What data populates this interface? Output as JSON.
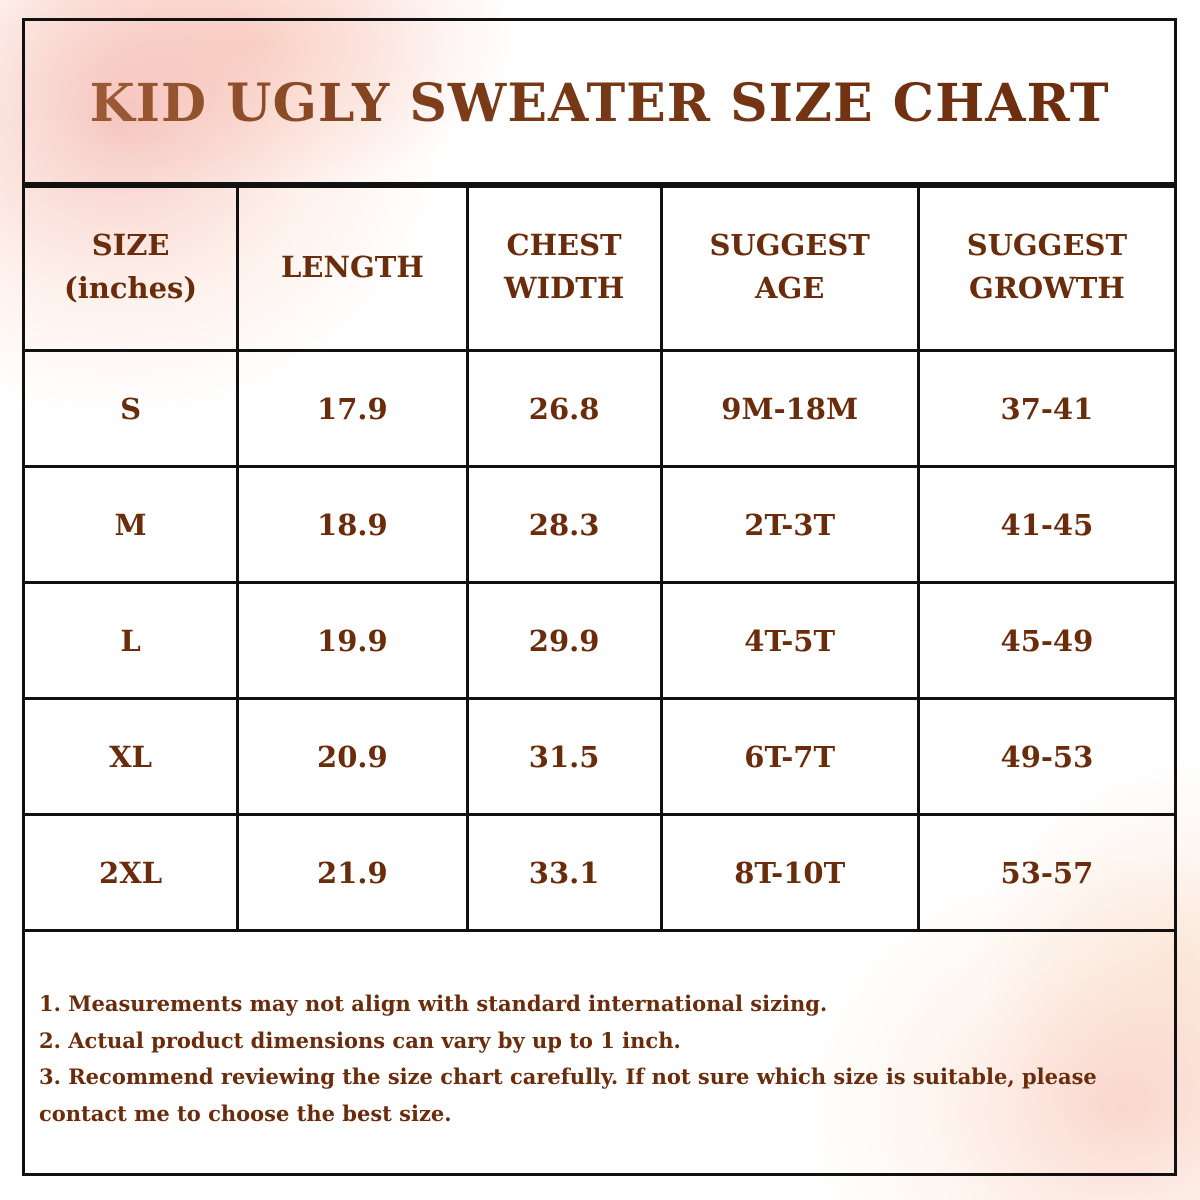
{
  "title": "KID UGLY SWEATER SIZE CHART",
  "table": {
    "headers": [
      [
        "SIZE",
        "(inches)"
      ],
      [
        "LENGTH",
        ""
      ],
      [
        "CHEST",
        "WIDTH"
      ],
      [
        "SUGGEST",
        "AGE"
      ],
      [
        "SUGGEST",
        "GROWTH"
      ]
    ],
    "rows": [
      [
        "S",
        "17.9",
        "26.8",
        "9M-18M",
        "37-41"
      ],
      [
        "M",
        "18.9",
        "28.3",
        "2T-3T",
        "41-45"
      ],
      [
        "L",
        "19.9",
        "29.9",
        "4T-5T",
        "45-49"
      ],
      [
        "XL",
        "20.9",
        "31.5",
        "6T-7T",
        "49-53"
      ],
      [
        "2XL",
        "21.9",
        "33.1",
        "8T-10T",
        "53-57"
      ]
    ]
  },
  "notes": [
    "1. Measurements may not align with standard international sizing.",
    "2. Actual product dimensions can vary by up to 1 inch.",
    "3. Recommend reviewing the size chart carefully. If not sure which size is suitable, please contact me to choose the best size."
  ],
  "colors": {
    "text": "#6b2c0c",
    "border": "#111111"
  }
}
